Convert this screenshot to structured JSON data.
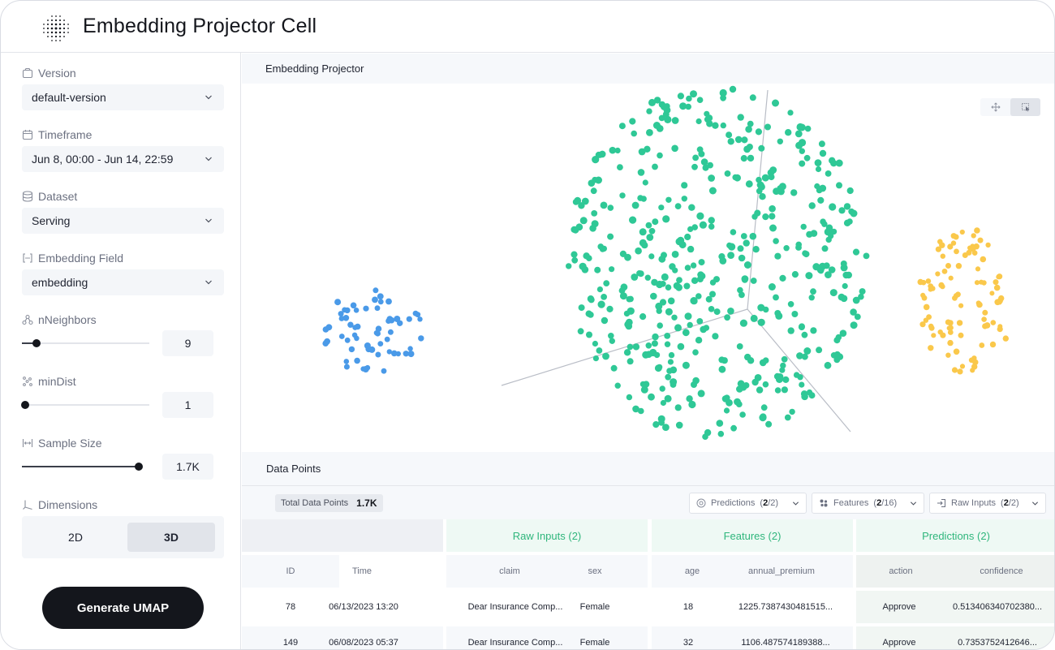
{
  "app": {
    "title": "Embedding Projector Cell"
  },
  "sidebar": {
    "version": {
      "label": "Version",
      "value": "default-version"
    },
    "timeframe": {
      "label": "Timeframe",
      "value": "Jun 8, 00:00 - Jun 14, 22:59"
    },
    "dataset": {
      "label": "Dataset",
      "value": "Serving"
    },
    "embedding_field": {
      "label": "Embedding Field",
      "value": "embedding"
    },
    "n_neighbors": {
      "label": "nNeighbors",
      "value": "9",
      "level": 0.12
    },
    "min_dist": {
      "label": "minDist",
      "value": "1",
      "level": 0.03
    },
    "sample_size": {
      "label": "Sample Size",
      "value": "1.7K",
      "level": 1.0
    },
    "dimensions": {
      "label": "Dimensions",
      "options": [
        "2D",
        "3D"
      ],
      "selected": "3D"
    },
    "generate_label": "Generate UMAP"
  },
  "projector": {
    "title": "Embedding Projector",
    "colors": {
      "blue": "#4a9ae8",
      "green": "#2fc896",
      "yellow": "#fac84b"
    }
  },
  "data_points": {
    "title": "Data Points",
    "total_label": "Total Data Points",
    "total_value": "1.7K",
    "filters": [
      {
        "label": "Predictions",
        "selected": "2",
        "total": "2"
      },
      {
        "label": "Features",
        "selected": "2",
        "total": "16"
      },
      {
        "label": "Raw Inputs",
        "selected": "2",
        "total": "2"
      }
    ],
    "groups": [
      "Raw Inputs (2)",
      "Features (2)",
      "Predictions (2)"
    ],
    "columns": [
      "ID",
      "Time",
      "claim",
      "sex",
      "age",
      "annual_premium",
      "action",
      "confidence"
    ],
    "rows": [
      [
        "78",
        "06/13/2023 13:20",
        "Dear Insurance Comp...",
        "Female",
        "18",
        "1225.7387430481515...",
        "Approve",
        "0.513406340702380..."
      ],
      [
        "149",
        "06/08/2023 05:37",
        "Dear Insurance Comp...",
        "Female",
        "32",
        "1106.487574189388...",
        "Approve",
        "0.7353752412646..."
      ]
    ]
  }
}
